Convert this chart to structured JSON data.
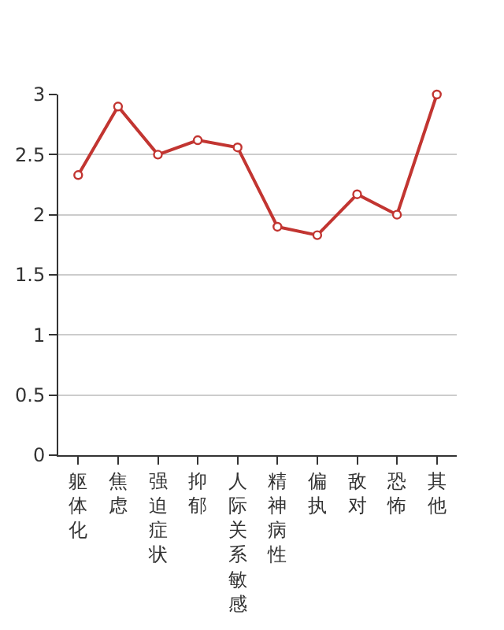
{
  "chart_data": {
    "type": "line",
    "categories": [
      "躯体化",
      "焦虑",
      "强迫症状",
      "抑郁",
      "人际关系敏感",
      "精神病性",
      "偏执",
      "敌对",
      "恐怖",
      "其他"
    ],
    "series": [
      {
        "color": "#c23531",
        "values": [
          2.33,
          2.9,
          2.5,
          2.62,
          2.56,
          1.9,
          1.83,
          2.17,
          2.0,
          3.0
        ]
      }
    ],
    "ylim": [
      0,
      3
    ],
    "yticks": [
      0,
      0.5,
      1,
      1.5,
      2,
      2.5,
      3
    ],
    "grid": "y",
    "marker": "circle",
    "line_style": "solid"
  }
}
